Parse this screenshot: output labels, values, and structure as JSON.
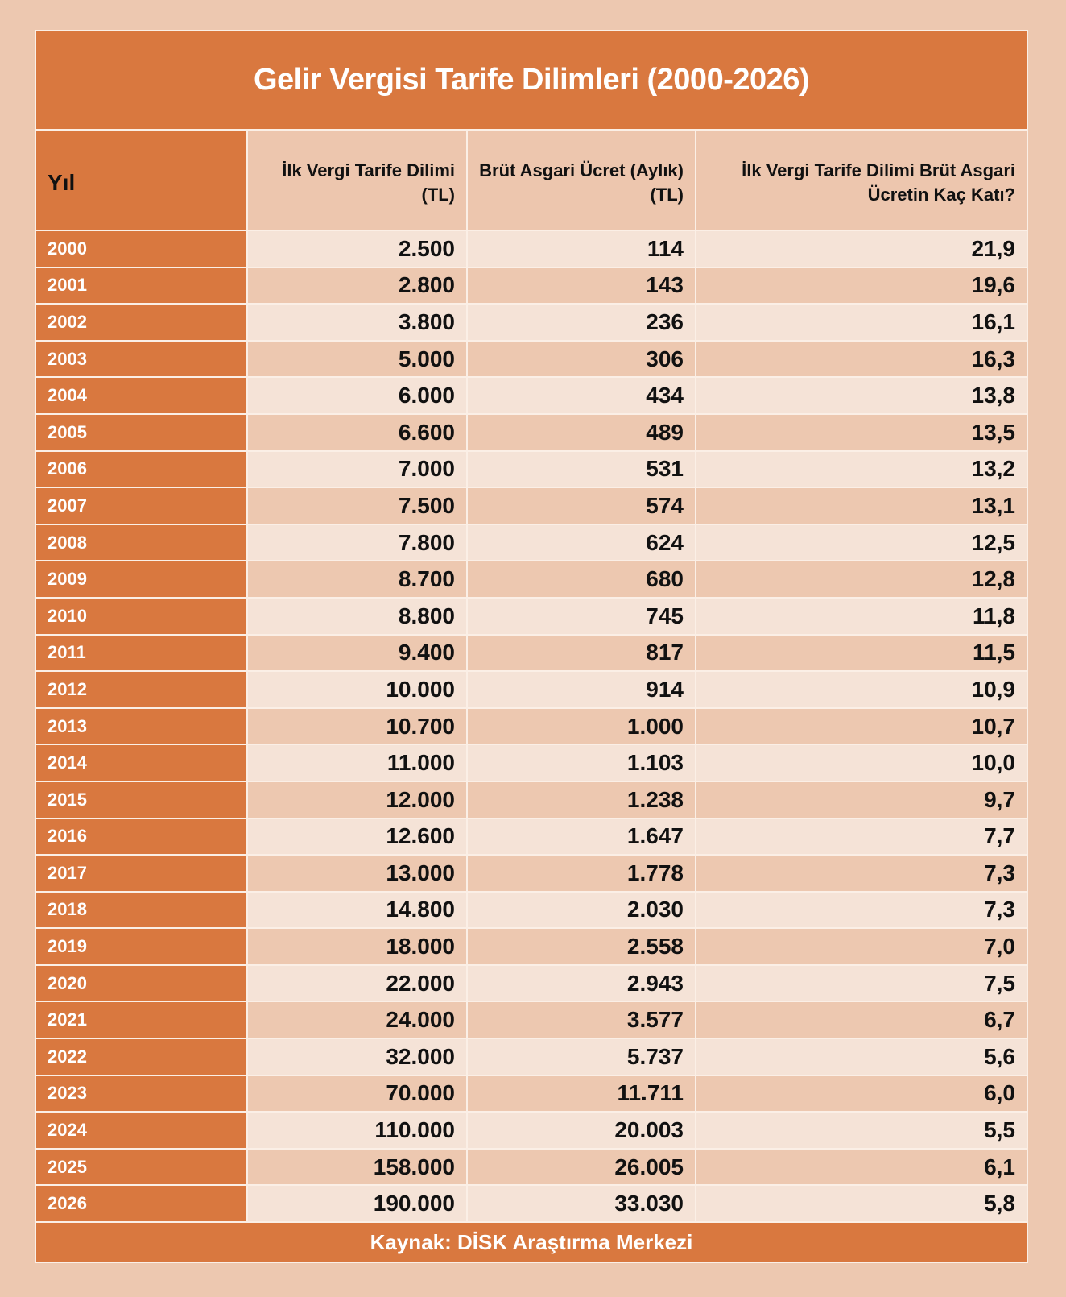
{
  "title": "Gelir Vergisi Tarife Dilimleri (2000-2026)",
  "headers": [
    "Yıl",
    "İlk Vergi Tarife Dilimi (TL)",
    "Brüt Asgari Ücret (Aylık) (TL)",
    "İlk Vergi Tarife Dilimi Brüt Asgari Ücretin Kaç Katı?"
  ],
  "rows": [
    [
      "2000",
      "2.500",
      "114",
      "21,9"
    ],
    [
      "2001",
      "2.800",
      "143",
      "19,6"
    ],
    [
      "2002",
      "3.800",
      "236",
      "16,1"
    ],
    [
      "2003",
      "5.000",
      "306",
      "16,3"
    ],
    [
      "2004",
      "6.000",
      "434",
      "13,8"
    ],
    [
      "2005",
      "6.600",
      "489",
      "13,5"
    ],
    [
      "2006",
      "7.000",
      "531",
      "13,2"
    ],
    [
      "2007",
      "7.500",
      "574",
      "13,1"
    ],
    [
      "2008",
      "7.800",
      "624",
      "12,5"
    ],
    [
      "2009",
      "8.700",
      "680",
      "12,8"
    ],
    [
      "2010",
      "8.800",
      "745",
      "11,8"
    ],
    [
      "2011",
      "9.400",
      "817",
      "11,5"
    ],
    [
      "2012",
      "10.000",
      "914",
      "10,9"
    ],
    [
      "2013",
      "10.700",
      "1.000",
      "10,7"
    ],
    [
      "2014",
      "11.000",
      "1.103",
      "10,0"
    ],
    [
      "2015",
      "12.000",
      "1.238",
      "9,7"
    ],
    [
      "2016",
      "12.600",
      "1.647",
      "7,7"
    ],
    [
      "2017",
      "13.000",
      "1.778",
      "7,3"
    ],
    [
      "2018",
      "14.800",
      "2.030",
      "7,3"
    ],
    [
      "2019",
      "18.000",
      "2.558",
      "7,0"
    ],
    [
      "2020",
      "22.000",
      "2.943",
      "7,5"
    ],
    [
      "2021",
      "24.000",
      "3.577",
      "6,7"
    ],
    [
      "2022",
      "32.000",
      "5.737",
      "5,6"
    ],
    [
      "2023",
      "70.000",
      "11.711",
      "6,0"
    ],
    [
      "2024",
      "110.000",
      "20.003",
      "5,5"
    ],
    [
      "2025",
      "158.000",
      "26.005",
      "6,1"
    ],
    [
      "2026",
      "190.000",
      "33.030",
      "5,8"
    ]
  ],
  "footer": "Kaynak: DİSK Araştırma Merkezi",
  "colors": {
    "accent": "#D9783F",
    "background": "#EDC8B0",
    "row_light": "#F5E3D7"
  }
}
